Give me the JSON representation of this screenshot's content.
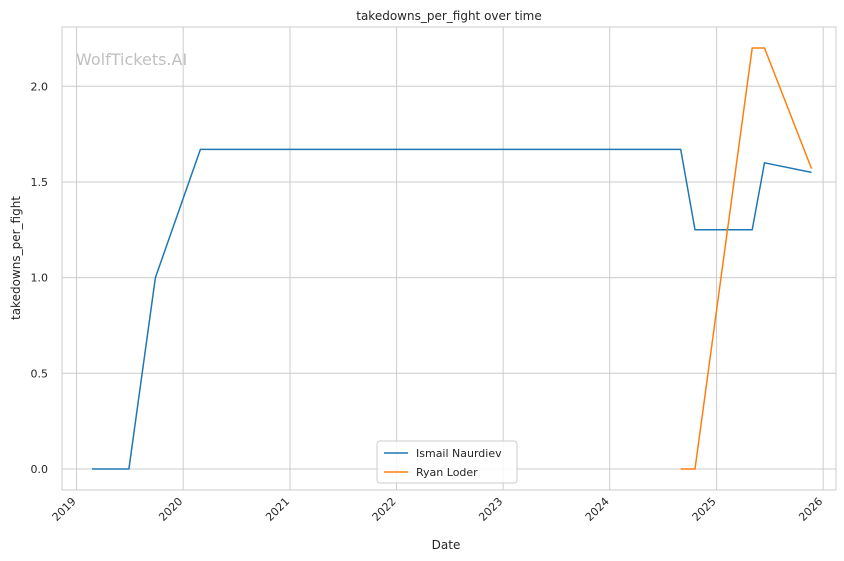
{
  "chart_data": {
    "type": "line",
    "title": "takedowns_per_fight over time",
    "xlabel": "Date",
    "ylabel": "takedowns_per_fight",
    "watermark": "WolfTickets.AI",
    "x_ticks": [
      "2019",
      "2020",
      "2021",
      "2022",
      "2023",
      "2024",
      "2025",
      "2026"
    ],
    "y_ticks": [
      "0.0",
      "0.5",
      "1.0",
      "1.5",
      "2.0"
    ],
    "xlim": [
      "2018-11-12",
      "2026-02-14"
    ],
    "ylim": [
      -0.11,
      2.31
    ],
    "grid": true,
    "legend_position": "lower-center",
    "series": [
      {
        "name": "Ismail Naurdiev",
        "color": "#1f77b4",
        "points": [
          [
            "2019-02-23",
            0.0
          ],
          [
            "2019-06-29",
            0.0
          ],
          [
            "2019-09-28",
            1.0
          ],
          [
            "2020-02-29",
            1.67
          ],
          [
            "2024-08-31",
            1.67
          ],
          [
            "2024-10-19",
            1.25
          ],
          [
            "2025-05-03",
            1.25
          ],
          [
            "2025-06-14",
            1.6
          ],
          [
            "2025-11-22",
            1.55
          ]
        ]
      },
      {
        "name": "Ryan Loder",
        "color": "#ff7f0e",
        "points": [
          [
            "2024-08-31",
            0.0
          ],
          [
            "2024-10-19",
            0.0
          ],
          [
            "2025-05-03",
            2.2
          ],
          [
            "2025-06-14",
            2.2
          ],
          [
            "2025-11-22",
            1.57
          ]
        ]
      }
    ]
  }
}
